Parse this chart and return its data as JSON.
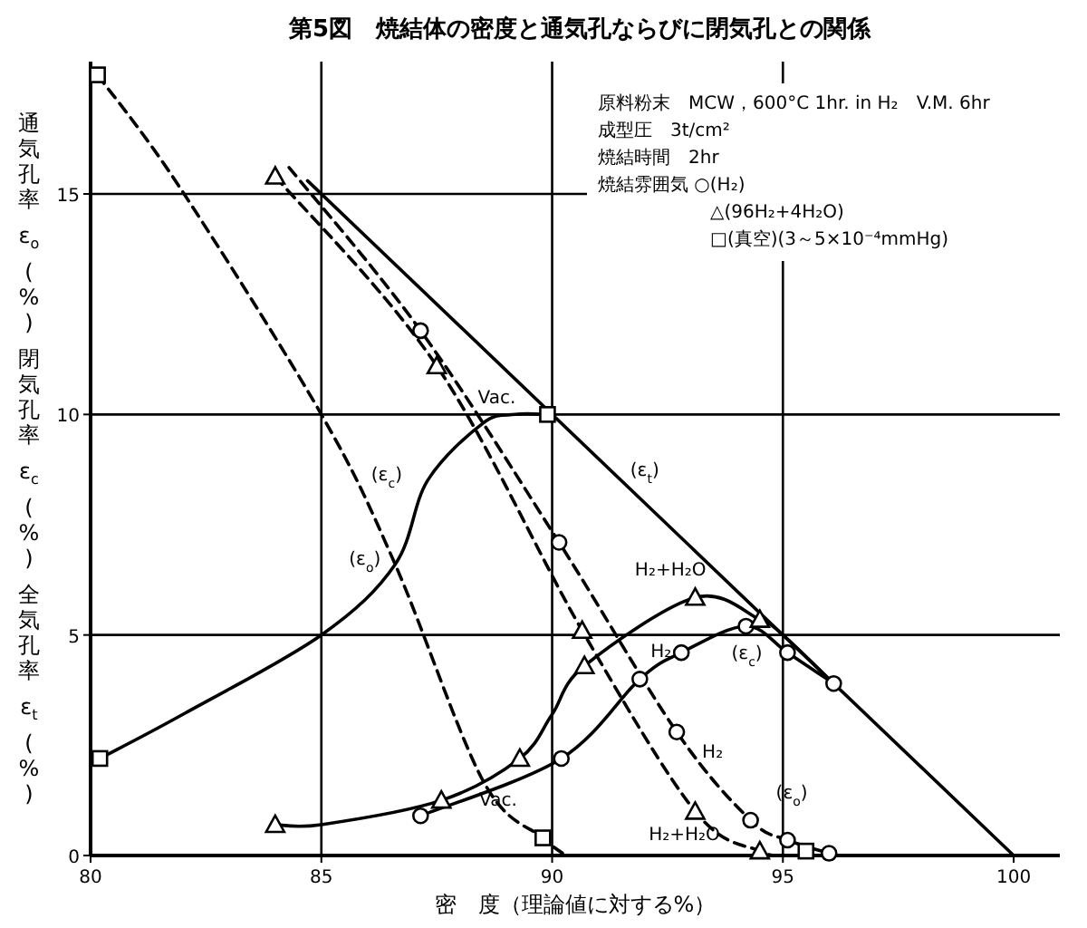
{
  "chart_data": {
    "type": "line",
    "title": "第5図　焼結体の密度と通気孔ならびに閉気孔との関係",
    "xlabel": "密　度（理論値に対する%）",
    "ylabel": "通気孔率 ε$_{o}$ (%)　閉気孔率 ε$_{c}$ (%)　全気孔率 ε$_{t}$ (%)",
    "xlim": [
      80,
      101
    ],
    "xticks": [
      80,
      85,
      90,
      95,
      100
    ],
    "ylim": [
      0,
      18
    ],
    "yticks": [
      0,
      5,
      10,
      15
    ],
    "ref_lines": [
      {
        "axis": "y",
        "value": 5
      },
      {
        "axis": "y",
        "value": 10
      },
      {
        "axis": "y",
        "value": 15
      },
      {
        "axis": "x",
        "value": 85
      },
      {
        "axis": "x",
        "value": 90
      },
      {
        "axis": "x",
        "value": 95
      }
    ],
    "series": [
      {
        "type": "line",
        "color": "#000000",
        "line_style": "solid",
        "marker": "none",
        "x": [
          84.7,
          100
        ],
        "values": [
          15.3,
          0
        ]
      },
      {
        "type": "line",
        "color": "#000000",
        "line_style": "dashed",
        "marker": "none",
        "x": [
          80.15,
          81.9,
          85,
          86.6,
          88.5,
          89.8,
          90.3
        ],
        "values": [
          17.7,
          15.2,
          10,
          6.6,
          1.7,
          0.4,
          0
        ]
      },
      {
        "type": "line",
        "color": "#000000",
        "line_style": "solid",
        "marker": "none",
        "x": [
          80.2,
          82,
          85,
          86.6,
          87.3,
          88.5,
          89.2,
          89.9
        ],
        "values": [
          2.2,
          3.2,
          5,
          6.6,
          8.5,
          9.8,
          10,
          10
        ]
      },
      {
        "type": "line",
        "color": "#000000",
        "line_style": "dashed",
        "marker": "none",
        "x": [
          84.3,
          87.15,
          90.15,
          92.7,
          94.3,
          95.1,
          96.0
        ],
        "values": [
          15.6,
          11.9,
          7.1,
          2.8,
          0.8,
          0.35,
          0.05
        ]
      },
      {
        "type": "line",
        "color": "#000000",
        "line_style": "dashed",
        "marker": "none",
        "x": [
          84.0,
          87.5,
          90.65,
          93.1,
          94.5,
          95.0
        ],
        "values": [
          15.4,
          11.1,
          5.1,
          1.0,
          0.1,
          0
        ]
      },
      {
        "type": "line",
        "color": "#000000",
        "line_style": "solid",
        "marker": "none",
        "x": [
          87.15,
          90.2,
          91.9,
          92.8,
          94.2,
          95.1,
          96.1
        ],
        "values": [
          0.9,
          2.2,
          4.0,
          4.6,
          5.2,
          4.6,
          3.9
        ]
      },
      {
        "type": "line",
        "color": "#000000",
        "line_style": "solid",
        "marker": "none",
        "x": [
          84.0,
          85,
          87.6,
          89.3,
          90,
          90.7,
          93.1,
          94.5,
          95.0,
          96.1
        ],
        "values": [
          0.7,
          0.7,
          1.25,
          2.2,
          3.2,
          4.3,
          5.85,
          5.35,
          5.0,
          3.9
        ]
      },
      {
        "type": "scatter",
        "color": "#000000",
        "marker": "circle",
        "x": [
          87.15,
          90.15,
          92.7,
          94.3,
          95.1,
          96.0,
          87.15,
          90.2,
          91.9,
          92.8,
          94.2,
          95.1,
          96.1
        ],
        "values": [
          11.9,
          7.1,
          2.8,
          0.8,
          0.35,
          0.05,
          0.9,
          2.2,
          4.0,
          4.6,
          5.2,
          4.6,
          3.9
        ]
      },
      {
        "type": "scatter",
        "color": "#000000",
        "marker": "triangle",
        "x": [
          84.0,
          87.5,
          90.65,
          93.1,
          94.5,
          84.0,
          87.6,
          89.3,
          90.7,
          93.1,
          94.5
        ],
        "values": [
          15.4,
          11.1,
          5.1,
          1.0,
          0.1,
          0.7,
          1.25,
          2.2,
          4.3,
          5.85,
          5.35
        ]
      },
      {
        "type": "scatter",
        "color": "#000000",
        "marker": "square",
        "x": [
          80.15,
          89.8,
          80.2,
          89.9,
          95.5
        ],
        "values": [
          17.7,
          0.4,
          2.2,
          10,
          0.1
        ]
      }
    ],
    "annotations": [
      "原料粉末　MCW，600°C 1hr. in H₂　V.M. 6hr",
      "成型圧　3t/cm²",
      "焼結時間　2hr",
      "焼結雰囲気 ○(H₂)",
      "△(96H₂+4H₂O)",
      "□(真空)(3～5×10⁻⁴mmHg)",
      {
        "text": "Vac.",
        "x": 89.9,
        "y": 10
      },
      {
        "text": "(ε$_{c}$)",
        "x": 87.3,
        "y": 8.5
      },
      {
        "text": "(ε$_{o}$)",
        "x": 86.6,
        "y": 6.6
      },
      {
        "text": "Vac.",
        "x": 88.5,
        "y": 1.7
      },
      {
        "text": "(ε$_{t}$)",
        "x": 91.3,
        "y": 8.7
      },
      {
        "text": "H₂+H₂O",
        "x": 93.1,
        "y": 5.85
      },
      {
        "text": "H₂",
        "x": 91.9,
        "y": 4.0
      },
      {
        "text": "(ε$_{c}$)",
        "x": 94.2,
        "y": 5.2
      },
      {
        "text": "H₂",
        "x": 92.7,
        "y": 2.8
      },
      {
        "text": "H₂+H₂O",
        "x": 93.1,
        "y": 1.0
      },
      {
        "text": "(ε$_{o}$)",
        "x": 94.3,
        "y": 0.8
      }
    ]
  }
}
